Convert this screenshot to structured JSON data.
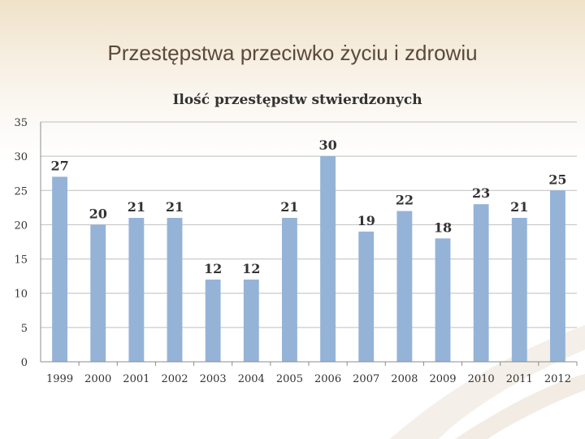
{
  "slide": {
    "title": "Przestępstwa przeciwko życiu i zdrowiu"
  },
  "colors": {
    "bar": "#95b3d7",
    "grid": "#bfbfbf",
    "axis": "#8c8c8c",
    "text": "#333333",
    "title": "#5a4a3a"
  },
  "chart_data": {
    "type": "bar",
    "title": "Ilość przestępstw stwierdzonych",
    "categories": [
      "1999",
      "2000",
      "2001",
      "2002",
      "2003",
      "2004",
      "2005",
      "2006",
      "2007",
      "2008",
      "2009",
      "2010",
      "2011",
      "2012"
    ],
    "values": [
      27,
      20,
      21,
      21,
      12,
      12,
      21,
      30,
      19,
      22,
      18,
      23,
      21,
      25
    ],
    "data_labels": [
      "27",
      "20",
      "21",
      "21",
      "12",
      "12",
      "21",
      "30",
      "19",
      "22",
      "18",
      "23",
      "21",
      "25"
    ],
    "yticks": [
      "0",
      "5",
      "10",
      "15",
      "20",
      "25",
      "30",
      "35"
    ],
    "ylim": [
      0,
      35
    ],
    "xlabel": "",
    "ylabel": "",
    "grid": true,
    "legend": "none"
  }
}
